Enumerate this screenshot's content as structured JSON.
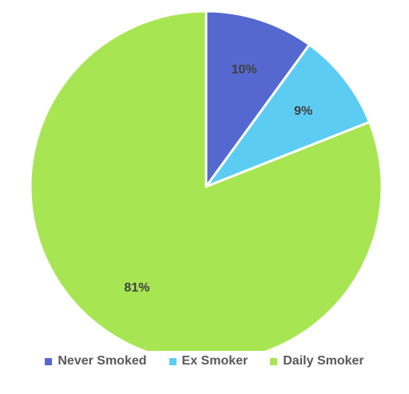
{
  "chart_data": {
    "type": "pie",
    "categories": [
      "Never Smoked",
      "Ex Smoker",
      "Daily Smoker"
    ],
    "values": [
      10,
      9,
      81
    ],
    "data_labels": [
      "10%",
      "9%",
      "81%"
    ],
    "colors": [
      "#5468CF",
      "#5CCCF2",
      "#A8E553"
    ],
    "start_angle": "12 o'clock, clockwise",
    "legend_position": "bottom"
  },
  "legend": {
    "items": [
      {
        "label": "Never Smoked",
        "color": "#5468CF"
      },
      {
        "label": "Ex Smoker",
        "color": "#5CCCF2"
      },
      {
        "label": "Daily Smoker",
        "color": "#A8E553"
      }
    ]
  }
}
